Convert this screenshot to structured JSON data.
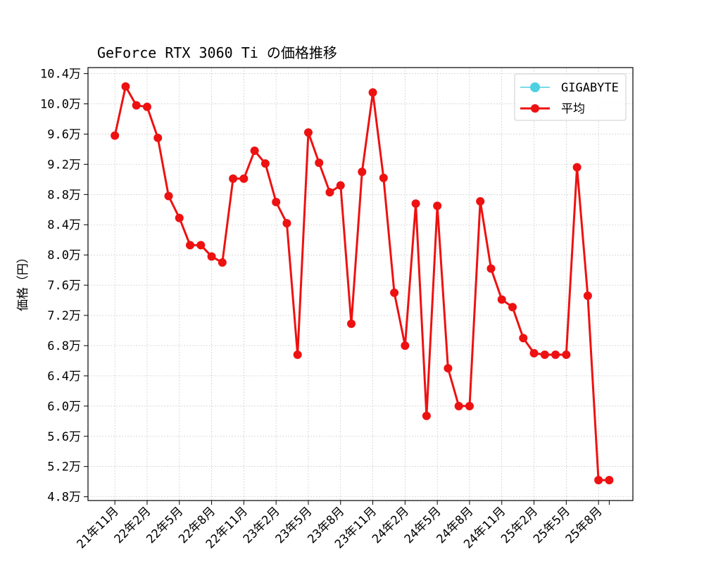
{
  "chart_data": {
    "type": "line",
    "title": "GeForce RTX 3060 Ti の価格推移",
    "xlabel": "",
    "ylabel": "価格（円）",
    "ylim": [
      47500,
      104800
    ],
    "grid": true,
    "legend_position": "top-right",
    "y_ticks": [
      48000,
      52000,
      56000,
      60000,
      64000,
      68000,
      72000,
      76000,
      80000,
      84000,
      88000,
      92000,
      96000,
      100000,
      104000
    ],
    "y_tick_labels": [
      "4.8万",
      "5.2万",
      "5.6万",
      "6.0万",
      "6.4万",
      "6.8万",
      "7.2万",
      "7.6万",
      "8.0万",
      "8.4万",
      "8.8万",
      "9.2万",
      "9.6万",
      "10.0万",
      "10.4万"
    ],
    "x_tick_labels": [
      "21年11月",
      "22年2月",
      "22年5月",
      "22年8月",
      "22年11月",
      "23年2月",
      "23年5月",
      "23年8月",
      "23年11月",
      "24年2月",
      "24年5月",
      "24年8月",
      "24年11月",
      "25年2月",
      "25年5月",
      "25年8月"
    ],
    "x_tick_positions": [
      0,
      3,
      6,
      9,
      12,
      15,
      18,
      21,
      24,
      27,
      30,
      33,
      36,
      39,
      42,
      45
    ],
    "xlim": [
      -2.5,
      48.2
    ],
    "series": [
      {
        "name": "GIGABYTE",
        "color": "#4dd0e1",
        "x": [],
        "values": []
      },
      {
        "name": "平均",
        "color": "#ee1111",
        "x": [
          0,
          1,
          2,
          3,
          4,
          5,
          6,
          7,
          8,
          9,
          10,
          11,
          12,
          13,
          14,
          15,
          16,
          17,
          18,
          19,
          20,
          21,
          22,
          23,
          24,
          25,
          26,
          27,
          28,
          29,
          30,
          31,
          32,
          33,
          34,
          35,
          36,
          37,
          38,
          39,
          40,
          41,
          42,
          43,
          44,
          45,
          46
        ],
        "values": [
          95800,
          102300,
          99800,
          99600,
          95500,
          87800,
          84900,
          81300,
          81300,
          79800,
          79000,
          90100,
          90100,
          93800,
          92100,
          87000,
          84200,
          66800,
          96200,
          92200,
          88300,
          89200,
          70900,
          91000,
          101500,
          90200,
          75000,
          68000,
          86800,
          58700,
          86500,
          65000,
          60000,
          60000,
          87100,
          78200,
          74100,
          73100,
          69000,
          67000,
          66800,
          66800,
          66800,
          91600,
          74600,
          50200,
          50200
        ]
      }
    ]
  }
}
